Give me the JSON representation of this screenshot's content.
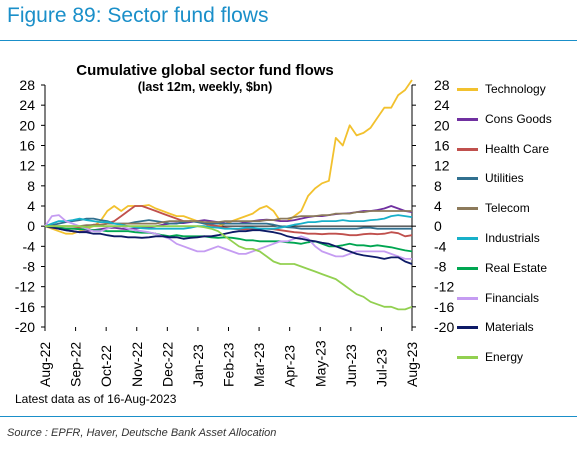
{
  "figure_title": "Figure 89: Sector fund flows",
  "footnote": "Latest data as of 16-Aug-2023",
  "source": "Source : EPFR, Haver, Deutsche Bank Asset Allocation",
  "chart_data": {
    "type": "line",
    "title": "Cumulative global sector fund flows",
    "subtitle": "(last 12m, weekly, $bn)",
    "xlabel": "",
    "ylabel": "",
    "ylim": [
      -20,
      28
    ],
    "yticks": [
      "28",
      "24",
      "20",
      "16",
      "12",
      "8",
      "4",
      "0",
      "-4",
      "-8",
      "-12",
      "-16",
      "-20"
    ],
    "secondary_yticks": [
      "28",
      "24",
      "20",
      "16",
      "12",
      "8",
      "4",
      "0",
      "-4",
      "-8",
      "-12",
      "-16",
      "-20"
    ],
    "xticks": [
      "Aug-22",
      "Sep-22",
      "Oct-22",
      "Nov-22",
      "Dec-22",
      "Jan-23",
      "Feb-23",
      "Mar-23",
      "Apr-23",
      "May-23",
      "Jun-23",
      "Jul-23",
      "Aug-23"
    ],
    "grid": false,
    "legend_position": "right",
    "series": [
      {
        "name": "Technology",
        "color": "#f2c12e",
        "values": [
          0,
          -0.5,
          -1,
          -1.5,
          -1.5,
          -1,
          -0.5,
          0,
          1,
          3,
          4,
          3,
          4,
          4,
          4,
          4.2,
          3.5,
          3,
          2.5,
          2,
          2,
          1.5,
          1,
          0.5,
          0,
          0,
          0.5,
          1,
          1.5,
          2,
          2.5,
          3.5,
          4,
          3,
          1,
          1,
          2,
          3,
          6,
          7.5,
          8.5,
          9,
          17.5,
          16,
          20,
          18,
          18.5,
          19.5,
          21.5,
          23.5,
          23.5,
          26,
          27,
          29
        ]
      },
      {
        "name": "Cons Goods",
        "color": "#7030a0",
        "values": [
          0,
          -0.3,
          -0.5,
          -0.8,
          -1,
          -1.2,
          -1,
          -0.8,
          -0.6,
          -0.4,
          -0.3,
          -0.5,
          -0.6,
          -0.5,
          -0.3,
          -0.3,
          0,
          0.3,
          0.5,
          0.6,
          0.6,
          0.8,
          1,
          1.2,
          1,
          0.8,
          0.6,
          0.5,
          0.5,
          0.8,
          1,
          1.2,
          1.3,
          1.2,
          1,
          1,
          1.2,
          1.5,
          1.8,
          2,
          2,
          2.2,
          2.4,
          2.5,
          2.6,
          2.8,
          3,
          3,
          3.2,
          3.5,
          4,
          3.5,
          3,
          2.8
        ]
      },
      {
        "name": "Health Care",
        "color": "#c0504d",
        "values": [
          0,
          -0.2,
          -0.3,
          -0.5,
          -0.5,
          -0.3,
          0,
          0.3,
          0.3,
          0.5,
          1,
          2,
          3,
          4,
          4,
          3.5,
          3,
          2.5,
          2,
          1.5,
          1,
          1,
          1,
          0.5,
          0.2,
          0,
          -0.3,
          -0.5,
          -0.6,
          -0.6,
          -0.5,
          -0.5,
          -0.5,
          -0.6,
          -0.8,
          -1,
          -1.2,
          -1.3,
          -1.5,
          -1.5,
          -1.6,
          -1.5,
          -1.5,
          -1.6,
          -1.8,
          -1.8,
          -1.6,
          -1.5,
          -1.6,
          -1.5,
          -1.2,
          -1.4,
          -2,
          -1.8
        ]
      },
      {
        "name": "Utilities",
        "color": "#31708f",
        "values": [
          0,
          0.2,
          0.5,
          0.8,
          1,
          1.2,
          1.5,
          1.5,
          1.2,
          1,
          0.5,
          0.5,
          0.5,
          0.8,
          1,
          1.2,
          1,
          0.8,
          0.5,
          0.5,
          0.8,
          1,
          0.8,
          0.5,
          0.5,
          0.5,
          0.5,
          0.5,
          0.5,
          0.5,
          0.5,
          0.5,
          0.5,
          0.3,
          0,
          -0.2,
          -0.3,
          -0.5,
          -0.5,
          -0.5,
          -0.5,
          -0.5,
          -0.5,
          -0.5,
          -0.5,
          -0.5,
          -0.3,
          -0.3,
          -0.5,
          -0.5,
          -0.5,
          -0.5,
          -0.5,
          -0.5
        ]
      },
      {
        "name": "Telecom",
        "color": "#8c7a5b",
        "values": [
          0,
          0,
          0,
          0,
          0,
          0,
          0.2,
          0.2,
          0.2,
          0.5,
          0.5,
          0.5,
          0.5,
          0.5,
          0.5,
          0.5,
          0.5,
          0.8,
          1,
          1,
          1,
          1,
          1,
          0.8,
          0.8,
          0.8,
          1,
          1,
          1,
          1,
          1,
          1,
          1.2,
          1.2,
          1.5,
          1.5,
          1.8,
          2,
          2,
          2,
          2.2,
          2.2,
          2.5,
          2.5,
          2.5,
          2.8,
          2.8,
          3,
          3,
          3,
          3,
          3,
          3,
          3
        ]
      },
      {
        "name": "Industrials",
        "color": "#17b0c9",
        "values": [
          0,
          0.5,
          1,
          1,
          1.2,
          1.5,
          1.2,
          1,
          0.8,
          0.8,
          0.5,
          0.3,
          0,
          -0.2,
          -0.4,
          -0.5,
          -0.5,
          -0.5,
          -0.5,
          -0.5,
          -0.5,
          -0.3,
          0,
          0,
          -0.2,
          -0.3,
          -0.5,
          -0.5,
          -0.5,
          -0.3,
          -0.3,
          -0.5,
          -0.5,
          -0.5,
          -0.3,
          0,
          0.3,
          0.5,
          0.8,
          0.8,
          1,
          1,
          1,
          1.2,
          1,
          1,
          1,
          1.2,
          1.3,
          1.5,
          2,
          2.2,
          2,
          1.8
        ]
      },
      {
        "name": "Real Estate",
        "color": "#00a651",
        "values": [
          0,
          -0.2,
          -0.3,
          -0.5,
          -0.5,
          -0.6,
          -0.6,
          -0.8,
          -0.8,
          -1,
          -1,
          -1,
          -1,
          -1.2,
          -1.3,
          -1.3,
          -1.5,
          -1.8,
          -2,
          -1.8,
          -2,
          -2,
          -2,
          -2,
          -2.2,
          -2.3,
          -2.2,
          -2.3,
          -2.5,
          -2.8,
          -2.8,
          -3,
          -3,
          -3,
          -3,
          -3.2,
          -3.3,
          -3.5,
          -3.2,
          -3,
          -3.5,
          -4,
          -4,
          -3.8,
          -3.5,
          -3.8,
          -3.8,
          -4,
          -3.8,
          -4,
          -4.2,
          -4.5,
          -4.8,
          -5
        ]
      },
      {
        "name": "Financials",
        "color": "#c59cf2",
        "values": [
          0,
          2,
          2.2,
          1,
          0.5,
          0,
          -0.5,
          -1,
          -1,
          -0.5,
          0,
          0,
          -0.5,
          -0.8,
          -1,
          -1.2,
          -1.5,
          -2,
          -2.5,
          -3.5,
          -4,
          -4.5,
          -5,
          -5,
          -4.5,
          -4,
          -4.5,
          -5,
          -5.5,
          -5.5,
          -5,
          -4.5,
          -4,
          -3.5,
          -3,
          -3,
          -2.5,
          -2,
          -2.5,
          -4,
          -5,
          -5.5,
          -6,
          -6,
          -5.5,
          -5,
          -5,
          -5,
          -5,
          -5,
          -5.5,
          -6,
          -6.5,
          -6.5
        ]
      },
      {
        "name": "Materials",
        "color": "#0d1a66",
        "values": [
          0,
          -0.2,
          -0.5,
          -0.8,
          -1,
          -1.2,
          -1.2,
          -1.5,
          -1.5,
          -1.8,
          -2,
          -2,
          -2.2,
          -2.2,
          -2.3,
          -2.2,
          -2,
          -2,
          -2.2,
          -2.2,
          -2.5,
          -2.3,
          -2.2,
          -2,
          -2,
          -1.8,
          -1.5,
          -1.2,
          -1,
          -1,
          -0.8,
          -0.8,
          -1,
          -1.2,
          -1.5,
          -2,
          -2.3,
          -2.5,
          -2.8,
          -3,
          -3.3,
          -3.5,
          -4,
          -4.5,
          -5,
          -5.5,
          -5.8,
          -6,
          -6.2,
          -6.5,
          -6.2,
          -6.2,
          -7,
          -7.5
        ]
      },
      {
        "name": "Energy",
        "color": "#92d050",
        "values": [
          0,
          0,
          0,
          0,
          0,
          0,
          -0.2,
          0,
          0,
          0,
          0,
          0,
          0,
          0,
          0,
          0,
          0,
          0,
          0,
          0,
          0,
          0,
          0,
          -0.2,
          -0.5,
          -1,
          -2,
          -3,
          -4,
          -4.5,
          -4.5,
          -5,
          -6,
          -7,
          -7.5,
          -7.5,
          -7.5,
          -8,
          -8.5,
          -9,
          -9.5,
          -10,
          -10.5,
          -11.5,
          -12.5,
          -13.5,
          -14,
          -15,
          -15.5,
          -16,
          -16,
          -16.5,
          -16.5,
          -16
        ]
      }
    ]
  }
}
